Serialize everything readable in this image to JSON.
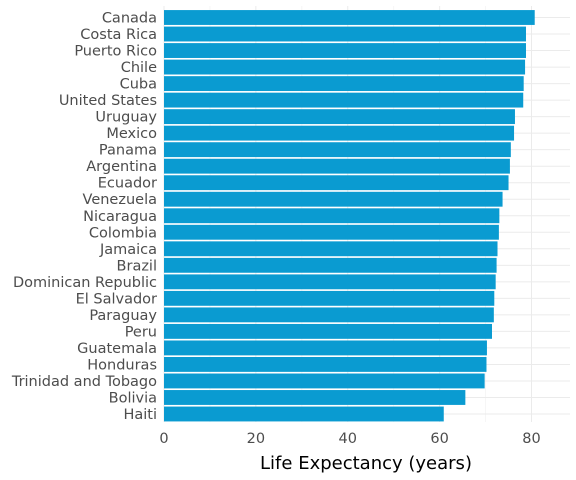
{
  "chart_data": {
    "type": "bar",
    "orientation": "horizontal",
    "categories": [
      "Canada",
      "Costa Rica",
      "Puerto Rico",
      "Chile",
      "Cuba",
      "United States",
      "Uruguay",
      "Mexico",
      "Panama",
      "Argentina",
      "Ecuador",
      "Venezuela",
      "Nicaragua",
      "Colombia",
      "Jamaica",
      "Brazil",
      "Dominican Republic",
      "El Salvador",
      "Paraguay",
      "Peru",
      "Guatemala",
      "Honduras",
      "Trinidad and Tobago",
      "Bolivia",
      "Haiti"
    ],
    "values": [
      80.7,
      78.8,
      78.8,
      78.6,
      78.3,
      78.2,
      76.4,
      76.2,
      75.5,
      75.3,
      75.0,
      73.7,
      73.0,
      72.9,
      72.6,
      72.4,
      72.2,
      71.9,
      71.8,
      71.4,
      70.3,
      70.2,
      69.8,
      65.6,
      60.9
    ],
    "xlabel": "Life Expectancy (years)",
    "ylabel": "",
    "xlim": [
      0,
      88
    ],
    "xticks": [
      0,
      20,
      40,
      60,
      80
    ],
    "xtick_labels": [
      "0",
      "20",
      "40",
      "60",
      "80"
    ],
    "grid": true,
    "legend": "none",
    "bar_color": "#0a9bd1"
  }
}
